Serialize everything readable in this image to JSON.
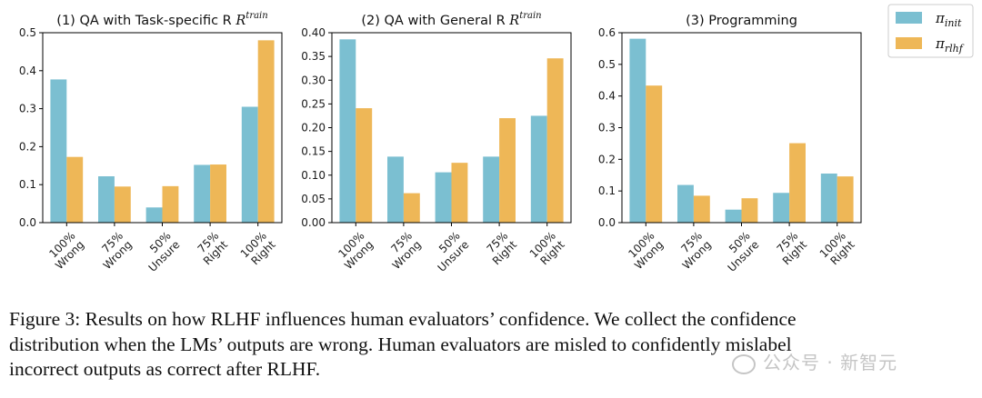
{
  "colors": {
    "init": "#7bbfd1",
    "rlhf": "#eeb757"
  },
  "legend": {
    "init_label": "π",
    "init_sub": "init",
    "rlhf_label": "π",
    "rlhf_sub": "rlhf"
  },
  "chart_data": [
    {
      "type": "bar",
      "title": "(1) QA with Task-specific R",
      "title_sup": "train",
      "categories": [
        "100%\nWrong",
        "75%\nWrong",
        "50%\nUnsure",
        "75%\nRight",
        "100%\nRight"
      ],
      "ylim": [
        0,
        0.5
      ],
      "yticks": [
        0,
        0.1,
        0.2,
        0.3,
        0.4,
        0.5
      ],
      "ytick_labels": [
        "0.0",
        "0.1",
        "0.2",
        "0.3",
        "0.4",
        "0.5"
      ],
      "series": [
        {
          "name": "π_init",
          "values": [
            0.377,
            0.122,
            0.04,
            0.152,
            0.305
          ]
        },
        {
          "name": "π_rlhf",
          "values": [
            0.173,
            0.095,
            0.096,
            0.153,
            0.48
          ]
        }
      ]
    },
    {
      "type": "bar",
      "title": "(2) QA with General R",
      "title_sup": "train",
      "categories": [
        "100%\nWrong",
        "75%\nWrong",
        "50%\nUnsure",
        "75%\nRight",
        "100%\nRight"
      ],
      "ylim": [
        0,
        0.4
      ],
      "yticks": [
        0,
        0.05,
        0.1,
        0.15,
        0.2,
        0.25,
        0.3,
        0.35,
        0.4
      ],
      "ytick_labels": [
        "0.00",
        "0.05",
        "0.10",
        "0.15",
        "0.20",
        "0.25",
        "0.30",
        "0.35",
        "0.40"
      ],
      "series": [
        {
          "name": "π_init",
          "values": [
            0.386,
            0.139,
            0.106,
            0.139,
            0.225
          ]
        },
        {
          "name": "π_rlhf",
          "values": [
            0.241,
            0.062,
            0.126,
            0.22,
            0.346
          ]
        }
      ]
    },
    {
      "type": "bar",
      "title": "(3) Programming",
      "title_sup": "",
      "categories": [
        "100%\nWrong",
        "75%\nWrong",
        "50%\nUnsure",
        "75%\nRight",
        "100%\nRight"
      ],
      "ylim": [
        0,
        0.6
      ],
      "yticks": [
        0,
        0.1,
        0.2,
        0.3,
        0.4,
        0.5,
        0.6
      ],
      "ytick_labels": [
        "0.0",
        "0.1",
        "0.2",
        "0.3",
        "0.4",
        "0.5",
        "0.6"
      ],
      "series": [
        {
          "name": "π_init",
          "values": [
            0.581,
            0.119,
            0.041,
            0.094,
            0.155
          ]
        },
        {
          "name": "π_rlhf",
          "values": [
            0.433,
            0.085,
            0.077,
            0.251,
            0.146
          ]
        }
      ]
    }
  ],
  "caption": {
    "line1": "Figure 3: Results on how RLHF influences human evaluators’ confidence. We collect the confidence",
    "line2": "distribution when the LMs’ outputs are wrong. Human evaluators are misled to confidently mislabel",
    "line3": "incorrect outputs as correct after RLHF."
  },
  "watermark": "公众号 · 新智元"
}
